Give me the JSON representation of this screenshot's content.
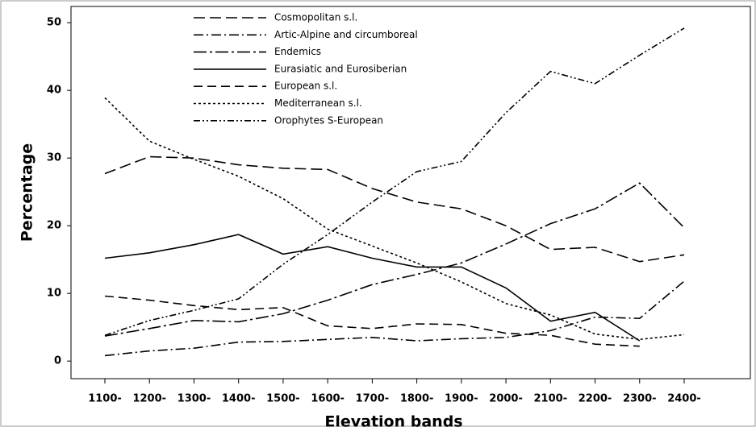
{
  "chart_data": {
    "type": "line",
    "x_label": "Elevation bands",
    "y_label": "Percentage",
    "categories": [
      "1100-",
      "1200-",
      "1300-",
      "1400-",
      "1500-",
      "1600-",
      "1700-",
      "1800-",
      "1900-",
      "2000-",
      "2100-",
      "2200-",
      "2300-",
      "2400-"
    ],
    "series": [
      {
        "name": "Cosmopolitan s.l.",
        "color": "#000000",
        "dash": "14 6",
        "values": [
          27.7,
          30.2,
          30.0,
          29.0,
          28.5,
          28.3,
          25.5,
          23.5,
          22.5,
          20.0,
          16.5,
          16.8,
          14.7,
          15.7
        ]
      },
      {
        "name": "Artic-Alpine and circumboreal",
        "color": "#000000",
        "dash": "12 4 2 4",
        "values": [
          0.8,
          1.5,
          1.9,
          2.8,
          2.9,
          3.2,
          3.5,
          3.0,
          3.3,
          3.5,
          4.5,
          6.5,
          6.3,
          11.8
        ]
      },
      {
        "name": "Endemics",
        "color": "#000000",
        "dash": "16 4 3 4",
        "values": [
          3.7,
          4.8,
          6.0,
          5.8,
          7.0,
          9.0,
          11.3,
          12.8,
          14.5,
          17.3,
          20.3,
          22.5,
          26.3,
          19.7
        ]
      },
      {
        "name": "Eurasiatic and Eurosiberian",
        "color": "#000000",
        "dash": "none",
        "values": [
          15.2,
          16.0,
          17.2,
          18.7,
          15.8,
          16.9,
          15.2,
          13.9,
          13.9,
          10.8,
          5.9,
          7.2,
          3.0,
          null
        ]
      },
      {
        "name": "European s.l.",
        "color": "#000000",
        "dash": "11 6",
        "values": [
          9.6,
          9.0,
          8.2,
          7.6,
          7.9,
          5.2,
          4.8,
          5.5,
          5.4,
          4.1,
          3.8,
          2.5,
          2.2,
          null
        ]
      },
      {
        "name": "Mediterranean s.l.",
        "color": "#000000",
        "dash": "3 3",
        "values": [
          38.9,
          32.5,
          29.8,
          27.3,
          24.0,
          19.5,
          17.0,
          14.5,
          11.7,
          8.5,
          6.8,
          4.0,
          3.2,
          3.9
        ]
      },
      {
        "name": "Orophytes S-European",
        "color": "#000000",
        "dash": "8 3 2 3 2 3",
        "values": [
          3.8,
          6.0,
          7.5,
          9.2,
          14.3,
          18.7,
          23.5,
          28.0,
          29.5,
          36.7,
          42.8,
          41.0,
          45.2,
          49.2
        ]
      }
    ],
    "ylim": [
      -2.6,
      52.4
    ],
    "yticks": [
      0,
      10,
      20,
      30,
      40,
      50
    ],
    "grid": false
  }
}
